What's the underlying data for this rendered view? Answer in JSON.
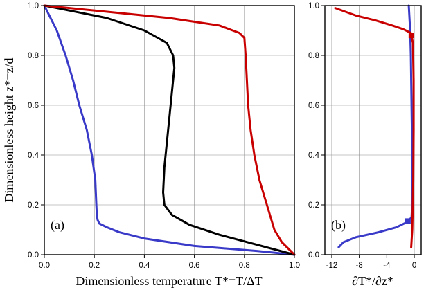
{
  "chart_data": [
    {
      "panel_label": "(a)",
      "type": "line",
      "xlabel": "Dimensionless temperature T*=T/ΔT",
      "ylabel": "Dimensionless height z*=z/d",
      "xlim": [
        0,
        1
      ],
      "ylim": [
        0,
        1
      ],
      "xticks": [
        "0.0",
        "0.2",
        "0.4",
        "0.6",
        "0.8",
        "1.0"
      ],
      "yticks": [
        "0.0",
        "0.2",
        "0.4",
        "0.6",
        "0.8",
        "1.0"
      ],
      "grid": true,
      "series": [
        {
          "color": "#3a3ac8",
          "points": [
            [
              1.0,
              0.0
            ],
            [
              0.85,
              0.015
            ],
            [
              0.6,
              0.035
            ],
            [
              0.4,
              0.065
            ],
            [
              0.3,
              0.09
            ],
            [
              0.25,
              0.11
            ],
            [
              0.22,
              0.125
            ],
            [
              0.213,
              0.14
            ],
            [
              0.21,
              0.16
            ],
            [
              0.208,
              0.2
            ],
            [
              0.204,
              0.3
            ],
            [
              0.19,
              0.4
            ],
            [
              0.17,
              0.5
            ],
            [
              0.14,
              0.6
            ],
            [
              0.115,
              0.7
            ],
            [
              0.085,
              0.8
            ],
            [
              0.05,
              0.9
            ],
            [
              0.02,
              0.96
            ],
            [
              0.0,
              1.0
            ]
          ]
        },
        {
          "color": "#000000",
          "points": [
            [
              1.0,
              0.0
            ],
            [
              0.85,
              0.04
            ],
            [
              0.7,
              0.08
            ],
            [
              0.58,
              0.12
            ],
            [
              0.51,
              0.16
            ],
            [
              0.48,
              0.2
            ],
            [
              0.475,
              0.25
            ],
            [
              0.48,
              0.35
            ],
            [
              0.49,
              0.45
            ],
            [
              0.5,
              0.55
            ],
            [
              0.51,
              0.65
            ],
            [
              0.52,
              0.75
            ],
            [
              0.515,
              0.8
            ],
            [
              0.49,
              0.85
            ],
            [
              0.4,
              0.9
            ],
            [
              0.25,
              0.95
            ],
            [
              0.0,
              1.0
            ]
          ]
        },
        {
          "color": "#c80000",
          "points": [
            [
              1.0,
              0.0
            ],
            [
              0.95,
              0.05
            ],
            [
              0.92,
              0.1
            ],
            [
              0.89,
              0.2
            ],
            [
              0.86,
              0.3
            ],
            [
              0.84,
              0.4
            ],
            [
              0.825,
              0.5
            ],
            [
              0.815,
              0.6
            ],
            [
              0.81,
              0.7
            ],
            [
              0.805,
              0.8
            ],
            [
              0.8,
              0.87
            ],
            [
              0.78,
              0.89
            ],
            [
              0.7,
              0.92
            ],
            [
              0.5,
              0.95
            ],
            [
              0.3,
              0.97
            ],
            [
              0.0,
              1.0
            ]
          ]
        }
      ]
    },
    {
      "panel_label": "(b)",
      "type": "line",
      "xlabel": "∂T*/∂z*",
      "xlim": [
        -13,
        1
      ],
      "ylim": [
        0,
        1
      ],
      "xticks": [
        "-12",
        "-8",
        "-4",
        "0"
      ],
      "xtick_values": [
        -12,
        -8,
        -4,
        0
      ],
      "yticks": [
        "0.0",
        "0.2",
        "0.4",
        "0.6",
        "0.8",
        "1.0"
      ],
      "grid": true,
      "series": [
        {
          "color": "#3a3ac8",
          "marker_y": 0.135,
          "points": [
            [
              -11.0,
              0.03
            ],
            [
              -10.3,
              0.05
            ],
            [
              -8.5,
              0.07
            ],
            [
              -5.2,
              0.09
            ],
            [
              -2.6,
              0.11
            ],
            [
              -1.1,
              0.13
            ],
            [
              -0.4,
              0.15
            ],
            [
              -0.3,
              0.2
            ],
            [
              -0.3,
              0.4
            ],
            [
              -0.4,
              0.6
            ],
            [
              -0.5,
              0.8
            ],
            [
              -0.6,
              0.9
            ],
            [
              -0.8,
              1.0
            ]
          ]
        },
        {
          "color": "#c80000",
          "marker_y": 0.88,
          "points": [
            [
              -11.5,
              0.99
            ],
            [
              -8.5,
              0.96
            ],
            [
              -5.6,
              0.94
            ],
            [
              -3.2,
              0.92
            ],
            [
              -1.6,
              0.905
            ],
            [
              -0.5,
              0.89
            ],
            [
              -0.2,
              0.85
            ],
            [
              -0.1,
              0.7
            ],
            [
              -0.1,
              0.5
            ],
            [
              -0.15,
              0.3
            ],
            [
              -0.3,
              0.1
            ],
            [
              -0.45,
              0.03
            ]
          ]
        }
      ]
    }
  ]
}
